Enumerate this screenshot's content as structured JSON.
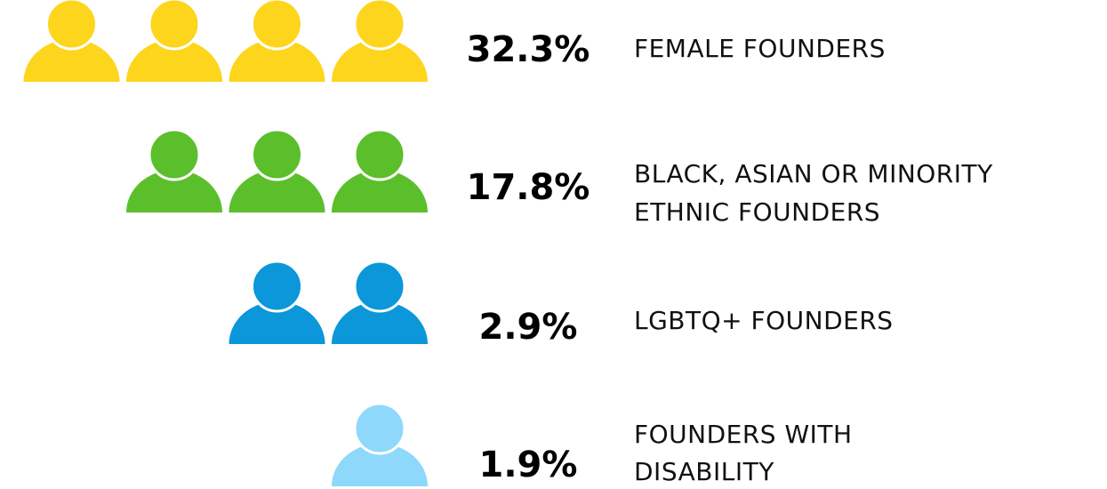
{
  "chart_data": {
    "type": "pictogram",
    "categories": [
      [
        "FEMALE FOUNDERS"
      ],
      [
        "BLACK, ASIAN OR MINORITY",
        "ETHNIC FOUNDERS"
      ],
      [
        "LGBTQ+ FOUNDERS"
      ],
      [
        "FOUNDERS WITH",
        "DISABILITY"
      ]
    ],
    "values": [
      32.3,
      17.8,
      2.9,
      1.9
    ],
    "value_labels": [
      "32.3%",
      "17.8%",
      "2.9%",
      "1.9%"
    ],
    "colors": [
      "#fdd51d",
      "#5bbf2c",
      "#0b97d9",
      "#8ed8fb"
    ]
  }
}
